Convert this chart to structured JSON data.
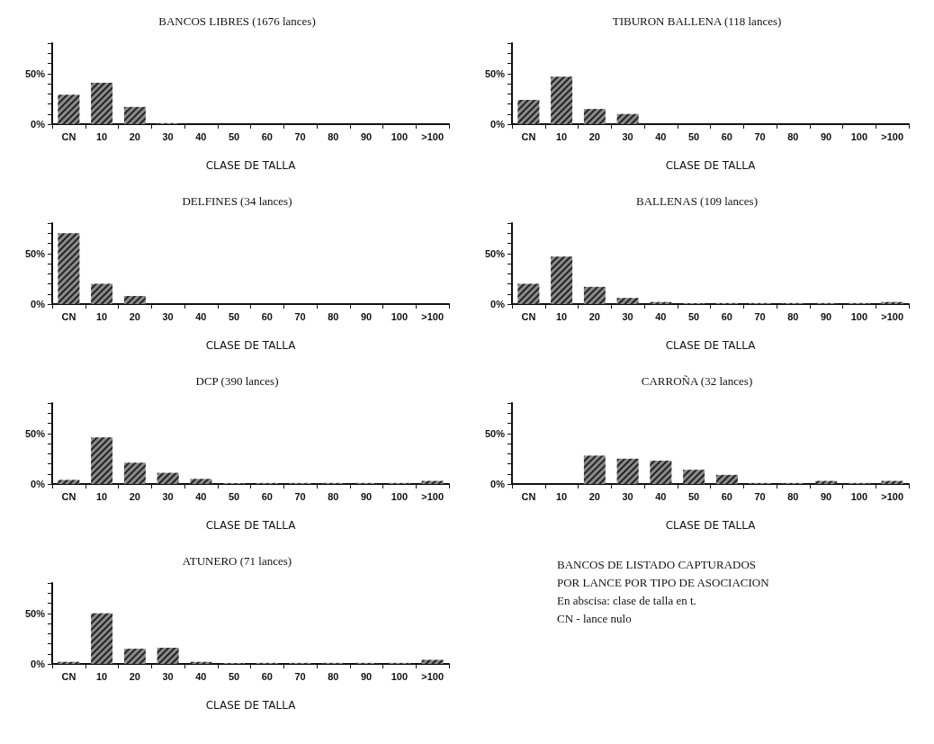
{
  "chart_data": [
    {
      "type": "bar",
      "title": "BANCOS LIBRES (1676 lances)",
      "xlabel": "CLASE DE TALLA",
      "categories": [
        "CN",
        "10",
        "20",
        "30",
        "40",
        "50",
        "60",
        "70",
        "80",
        "90",
        "100",
        ">100"
      ],
      "values": [
        29,
        41,
        17,
        1,
        0,
        0,
        0,
        0,
        0,
        0,
        0,
        0
      ],
      "color": "#8a8a8a",
      "ylim": [
        0,
        80
      ],
      "yticks": [
        {
          "value": 0,
          "label": "0%"
        },
        {
          "value": 10,
          "label": null
        },
        {
          "value": 20,
          "label": null
        },
        {
          "value": 30,
          "label": null
        },
        {
          "value": 40,
          "label": null
        },
        {
          "value": 50,
          "label": "50%"
        },
        {
          "value": 60,
          "label": null
        },
        {
          "value": 70,
          "label": null
        },
        {
          "value": 80,
          "label": null
        }
      ]
    },
    {
      "type": "bar",
      "title": "TIBURON BALLENA (118 lances)",
      "xlabel": "CLASE DE TALLA",
      "categories": [
        "CN",
        "10",
        "20",
        "30",
        "40",
        "50",
        "60",
        "70",
        "80",
        "90",
        "100",
        ">100"
      ],
      "values": [
        24,
        47,
        15,
        10,
        0,
        0,
        0,
        0,
        0,
        0,
        0,
        0
      ],
      "color": "#8a8a8a",
      "ylim": [
        0,
        80
      ],
      "yticks": [
        {
          "value": 0,
          "label": "0%"
        },
        {
          "value": 10,
          "label": null
        },
        {
          "value": 20,
          "label": null
        },
        {
          "value": 30,
          "label": null
        },
        {
          "value": 40,
          "label": null
        },
        {
          "value": 50,
          "label": "50%"
        },
        {
          "value": 60,
          "label": null
        },
        {
          "value": 70,
          "label": null
        },
        {
          "value": 80,
          "label": null
        }
      ]
    },
    {
      "type": "bar",
      "title": "DELFINES (34 lances)",
      "xlabel": "CLASE DE TALLA",
      "categories": [
        "CN",
        "10",
        "20",
        "30",
        "40",
        "50",
        "60",
        "70",
        "80",
        "90",
        "100",
        ">100"
      ],
      "values": [
        70,
        20,
        8,
        0,
        0,
        0,
        0,
        0,
        0,
        0,
        0,
        0
      ],
      "color": "#8a8a8a",
      "ylim": [
        0,
        80
      ],
      "yticks": [
        {
          "value": 0,
          "label": "0%"
        },
        {
          "value": 10,
          "label": null
        },
        {
          "value": 20,
          "label": null
        },
        {
          "value": 30,
          "label": null
        },
        {
          "value": 40,
          "label": null
        },
        {
          "value": 50,
          "label": "50%"
        },
        {
          "value": 60,
          "label": null
        },
        {
          "value": 70,
          "label": null
        },
        {
          "value": 80,
          "label": null
        }
      ]
    },
    {
      "type": "bar",
      "title": "BALLENAS (109 lances)",
      "xlabel": "CLASE DE TALLA",
      "categories": [
        "CN",
        "10",
        "20",
        "30",
        "40",
        "50",
        "60",
        "70",
        "80",
        "90",
        "100",
        ">100"
      ],
      "values": [
        20,
        47,
        17,
        6,
        2,
        1,
        1,
        1,
        1,
        1,
        1,
        2
      ],
      "color": "#8a8a8a",
      "ylim": [
        0,
        80
      ],
      "yticks": [
        {
          "value": 0,
          "label": "0%"
        },
        {
          "value": 10,
          "label": null
        },
        {
          "value": 20,
          "label": null
        },
        {
          "value": 30,
          "label": null
        },
        {
          "value": 40,
          "label": null
        },
        {
          "value": 50,
          "label": "50%"
        },
        {
          "value": 60,
          "label": null
        },
        {
          "value": 70,
          "label": null
        },
        {
          "value": 80,
          "label": null
        }
      ]
    },
    {
      "type": "bar",
      "title": "DCP (390 lances)",
      "xlabel": "CLASE DE TALLA",
      "categories": [
        "CN",
        "10",
        "20",
        "30",
        "40",
        "50",
        "60",
        "70",
        "80",
        "90",
        "100",
        ">100"
      ],
      "values": [
        4,
        46,
        21,
        11,
        5,
        1,
        1,
        1,
        1,
        1,
        1,
        3
      ],
      "color": "#8a8a8a",
      "ylim": [
        0,
        80
      ],
      "yticks": [
        {
          "value": 0,
          "label": "0%"
        },
        {
          "value": 10,
          "label": null
        },
        {
          "value": 20,
          "label": null
        },
        {
          "value": 30,
          "label": null
        },
        {
          "value": 40,
          "label": null
        },
        {
          "value": 50,
          "label": "50%"
        },
        {
          "value": 60,
          "label": null
        },
        {
          "value": 70,
          "label": null
        },
        {
          "value": 80,
          "label": null
        }
      ]
    },
    {
      "type": "bar",
      "title": "CARROÑA (32 lances)",
      "xlabel": "CLASE DE TALLA",
      "categories": [
        "CN",
        "10",
        "20",
        "30",
        "40",
        "50",
        "60",
        "70",
        "80",
        "90",
        "100",
        ">100"
      ],
      "values": [
        0,
        0,
        28,
        25,
        23,
        14,
        9,
        1,
        1,
        3,
        1,
        3
      ],
      "color": "#8a8a8a",
      "ylim": [
        0,
        80
      ],
      "yticks": [
        {
          "value": 0,
          "label": "0%"
        },
        {
          "value": 10,
          "label": null
        },
        {
          "value": 20,
          "label": null
        },
        {
          "value": 30,
          "label": null
        },
        {
          "value": 40,
          "label": null
        },
        {
          "value": 50,
          "label": "50%"
        },
        {
          "value": 60,
          "label": null
        },
        {
          "value": 70,
          "label": null
        },
        {
          "value": 80,
          "label": null
        }
      ]
    },
    {
      "type": "bar",
      "title": "ATUNERO (71 lances)",
      "xlabel": "CLASE DE TALLA",
      "categories": [
        "CN",
        "10",
        "20",
        "30",
        "40",
        "50",
        "60",
        "70",
        "80",
        "90",
        "100",
        ">100"
      ],
      "values": [
        2,
        50,
        15,
        16,
        2,
        1,
        1,
        1,
        1,
        1,
        1,
        4
      ],
      "color": "#8a8a8a",
      "ylim": [
        0,
        80
      ],
      "yticks": [
        {
          "value": 0,
          "label": "0%"
        },
        {
          "value": 10,
          "label": null
        },
        {
          "value": 20,
          "label": null
        },
        {
          "value": 30,
          "label": null
        },
        {
          "value": 40,
          "label": null
        },
        {
          "value": 50,
          "label": "50%"
        },
        {
          "value": 60,
          "label": null
        },
        {
          "value": 70,
          "label": null
        },
        {
          "value": 80,
          "label": null
        }
      ]
    },
    {
      "type": "other",
      "annotations": [
        "BANCOS DE LISTADO CAPTURADOS",
        "POR LANCE POR TIPO DE ASOCIACION",
        "En abscisa: clase de talla en t.",
        "CN -  lance nulo"
      ]
    }
  ]
}
